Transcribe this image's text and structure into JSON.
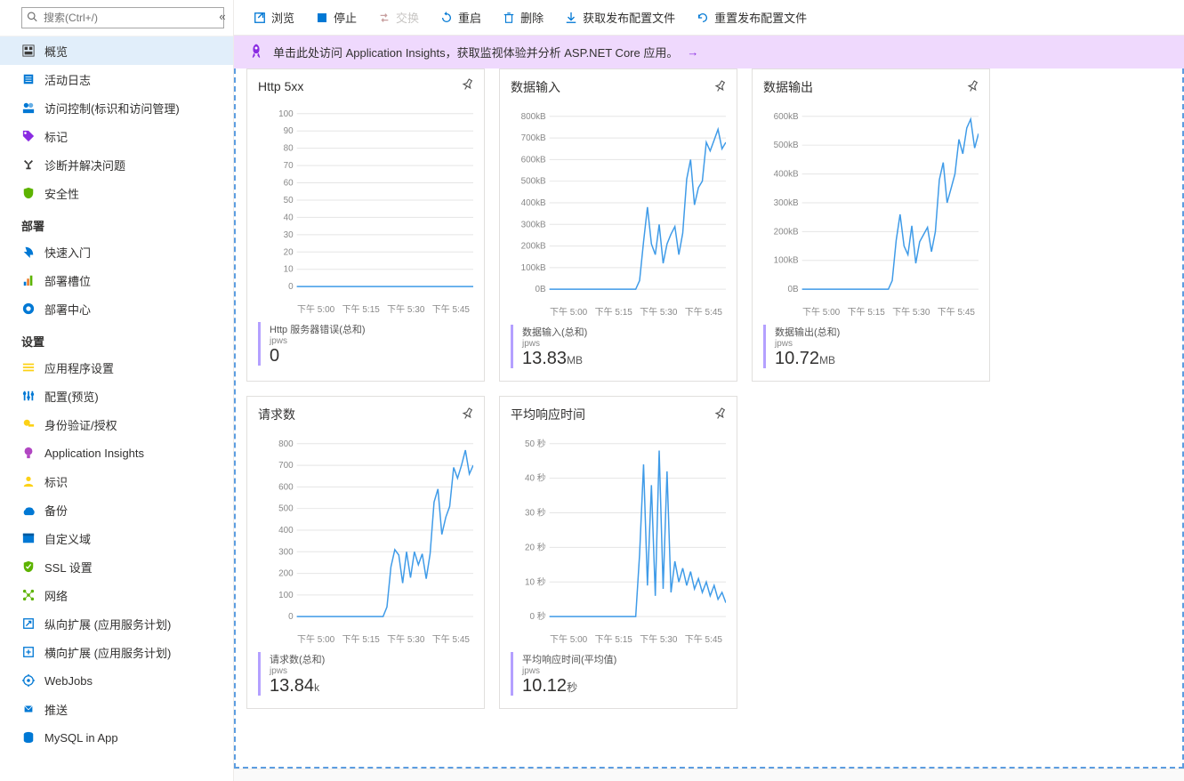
{
  "sidebar": {
    "search_placeholder": "搜索(Ctrl+/)",
    "items": [
      {
        "icon": "overview",
        "label": "概览",
        "color": "#3b3a39",
        "active": true
      },
      {
        "icon": "log",
        "label": "活动日志",
        "color": "#0078d4"
      },
      {
        "icon": "iam",
        "label": "访问控制(标识和访问管理)",
        "color": "#0078d4"
      },
      {
        "icon": "tags",
        "label": "标记",
        "color": "#8a2be2"
      },
      {
        "icon": "diagnose",
        "label": "诊断并解决问题",
        "color": "#3b3a39"
      },
      {
        "icon": "security",
        "label": "安全性",
        "color": "#5db300"
      }
    ],
    "section_deploy": "部署",
    "deploy_items": [
      {
        "icon": "quickstart",
        "label": "快速入门",
        "color": "#0078d4"
      },
      {
        "icon": "slots",
        "label": "部署槽位",
        "color": "#0078d4"
      },
      {
        "icon": "center",
        "label": "部署中心",
        "color": "#0078d4"
      }
    ],
    "section_settings": "设置",
    "settings_items": [
      {
        "icon": "appsettings",
        "label": "应用程序设置",
        "color": "#fcd116"
      },
      {
        "icon": "config",
        "label": "配置(预览)",
        "color": "#0078d4"
      },
      {
        "icon": "auth",
        "label": "身份验证/授权",
        "color": "#fcd116"
      },
      {
        "icon": "appinsights",
        "label": "Application Insights",
        "color": "#b146c2"
      },
      {
        "icon": "identity",
        "label": "标识",
        "color": "#fcd116"
      },
      {
        "icon": "backup",
        "label": "备份",
        "color": "#0078d4"
      },
      {
        "icon": "domain",
        "label": "自定义域",
        "color": "#0078d4"
      },
      {
        "icon": "ssl",
        "label": "SSL 设置",
        "color": "#5db300"
      },
      {
        "icon": "network",
        "label": "网络",
        "color": "#5db300"
      },
      {
        "icon": "scaleup",
        "label": "纵向扩展 (应用服务计划)",
        "color": "#0078d4"
      },
      {
        "icon": "scaleout",
        "label": "横向扩展 (应用服务计划)",
        "color": "#0078d4"
      },
      {
        "icon": "webjobs",
        "label": "WebJobs",
        "color": "#0078d4"
      },
      {
        "icon": "push",
        "label": "推送",
        "color": "#0078d4"
      },
      {
        "icon": "mysql",
        "label": "MySQL in App",
        "color": "#0078d4"
      }
    ]
  },
  "toolbar": {
    "browse": "浏览",
    "stop": "停止",
    "swap": "交换",
    "restart": "重启",
    "delete": "删除",
    "get_profile": "获取发布配置文件",
    "reset_profile": "重置发布配置文件"
  },
  "banner": {
    "text": "单击此处访问 Application Insights，获取监视体验并分析 ASP.NET Core 应用。"
  },
  "charts": [
    {
      "id": "http5xx",
      "title": "Http 5xx",
      "y_ticks": [
        "100",
        "90",
        "80",
        "70",
        "60",
        "50",
        "40",
        "30",
        "20",
        "10",
        "0"
      ],
      "x_ticks": [
        "下午 5:00",
        "下午 5:15",
        "下午 5:30",
        "下午 5:45"
      ],
      "ylim": [
        0,
        100
      ],
      "series_color": "#3f9be8",
      "grid_color": "#e5e5e5",
      "background_color": "#ffffff",
      "data": [
        0,
        0,
        0,
        0,
        0,
        0,
        0,
        0,
        0,
        0,
        0,
        0,
        0,
        0,
        0,
        0,
        0,
        0,
        0,
        0,
        0,
        0,
        0,
        0,
        0,
        0,
        0,
        0,
        0,
        0,
        0,
        0,
        0,
        0,
        0,
        0,
        0,
        0,
        0,
        0,
        0,
        0,
        0,
        0,
        0,
        0
      ],
      "metric_name": "Http 服务器错误(总和)",
      "metric_sub": "jpws",
      "metric_value": "0",
      "metric_unit": ""
    },
    {
      "id": "datain",
      "title": "数据输入",
      "y_ticks": [
        "800kB",
        "700kB",
        "600kB",
        "500kB",
        "400kB",
        "300kB",
        "200kB",
        "100kB",
        "0B"
      ],
      "x_ticks": [
        "下午 5:00",
        "下午 5:15",
        "下午 5:30",
        "下午 5:45"
      ],
      "ylim": [
        0,
        800
      ],
      "series_color": "#3f9be8",
      "grid_color": "#e5e5e5",
      "background_color": "#ffffff",
      "data": [
        0,
        0,
        0,
        0,
        0,
        0,
        0,
        0,
        0,
        0,
        0,
        0,
        0,
        0,
        0,
        0,
        0,
        0,
        0,
        0,
        0,
        0,
        0,
        40,
        220,
        380,
        210,
        160,
        300,
        120,
        210,
        255,
        290,
        160,
        260,
        510,
        600,
        390,
        470,
        500,
        680,
        640,
        690,
        740,
        650,
        680
      ],
      "metric_name": "数据输入(总和)",
      "metric_sub": "jpws",
      "metric_value": "13.83",
      "metric_unit": "MB"
    },
    {
      "id": "dataout",
      "title": "数据输出",
      "y_ticks": [
        "600kB",
        "500kB",
        "400kB",
        "300kB",
        "200kB",
        "100kB",
        "0B"
      ],
      "x_ticks": [
        "下午 5:00",
        "下午 5:15",
        "下午 5:30",
        "下午 5:45"
      ],
      "ylim": [
        0,
        600
      ],
      "series_color": "#3f9be8",
      "grid_color": "#e5e5e5",
      "background_color": "#ffffff",
      "data": [
        0,
        0,
        0,
        0,
        0,
        0,
        0,
        0,
        0,
        0,
        0,
        0,
        0,
        0,
        0,
        0,
        0,
        0,
        0,
        0,
        0,
        0,
        0,
        30,
        170,
        260,
        150,
        120,
        220,
        90,
        165,
        190,
        215,
        130,
        200,
        380,
        440,
        300,
        350,
        400,
        520,
        470,
        560,
        590,
        490,
        540
      ],
      "metric_name": "数据输出(总和)",
      "metric_sub": "jpws",
      "metric_value": "10.72",
      "metric_unit": "MB"
    },
    {
      "id": "requests",
      "title": "请求数",
      "y_ticks": [
        "800",
        "700",
        "600",
        "500",
        "400",
        "300",
        "200",
        "100",
        "0"
      ],
      "x_ticks": [
        "下午 5:00",
        "下午 5:15",
        "下午 5:30",
        "下午 5:45"
      ],
      "ylim": [
        0,
        800
      ],
      "series_color": "#3f9be8",
      "grid_color": "#e5e5e5",
      "background_color": "#ffffff",
      "data": [
        0,
        0,
        0,
        0,
        0,
        0,
        0,
        0,
        0,
        0,
        0,
        0,
        0,
        0,
        0,
        0,
        0,
        0,
        0,
        0,
        0,
        0,
        0,
        45,
        230,
        310,
        285,
        155,
        300,
        180,
        300,
        240,
        290,
        175,
        290,
        530,
        590,
        380,
        460,
        510,
        690,
        640,
        700,
        770,
        660,
        700
      ],
      "metric_name": "请求数(总和)",
      "metric_sub": "jpws",
      "metric_value": "13.84",
      "metric_unit": "k"
    },
    {
      "id": "avgresponse",
      "title": "平均响应时间",
      "y_ticks": [
        "50 秒",
        "40 秒",
        "30 秒",
        "20 秒",
        "10 秒",
        "0 秒"
      ],
      "x_ticks": [
        "下午 5:00",
        "下午 5:15",
        "下午 5:30",
        "下午 5:45"
      ],
      "ylim": [
        0,
        50
      ],
      "series_color": "#3f9be8",
      "grid_color": "#e5e5e5",
      "background_color": "#ffffff",
      "data": [
        0,
        0,
        0,
        0,
        0,
        0,
        0,
        0,
        0,
        0,
        0,
        0,
        0,
        0,
        0,
        0,
        0,
        0,
        0,
        0,
        0,
        0,
        0,
        18,
        44,
        9,
        38,
        6,
        48,
        8,
        42,
        7,
        16,
        10,
        14,
        9,
        13,
        8,
        11,
        7,
        10,
        6,
        9,
        5,
        7,
        4
      ],
      "metric_name": "平均响应时间(平均值)",
      "metric_sub": "jpws",
      "metric_value": "10.12",
      "metric_unit": "秒"
    }
  ],
  "accent_color": "#0078d4",
  "chart_accent": "#3f9be8",
  "metric_border_color": "#b4a0ff"
}
